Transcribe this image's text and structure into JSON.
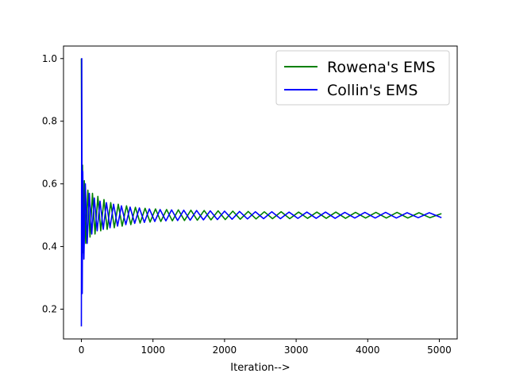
{
  "chart_data": {
    "type": "line",
    "title": "",
    "xlabel": "Iteration-->",
    "ylabel": "",
    "xlim": [
      -250,
      5250
    ],
    "ylim": [
      0.105,
      1.04
    ],
    "xticks": [
      0,
      1000,
      2000,
      3000,
      4000,
      5000
    ],
    "xtick_labels": [
      "0",
      "1000",
      "2000",
      "3000",
      "4000",
      "5000"
    ],
    "yticks": [
      0.2,
      0.4,
      0.6,
      0.8,
      1.0
    ],
    "ytick_labels": [
      "0.2",
      "0.4",
      "0.6",
      "0.8",
      "1.0"
    ],
    "grid": false,
    "legend_position": "top-right",
    "series": [
      {
        "name": "Rowena's EMS",
        "color": "#008000",
        "x": [
          0,
          8,
          16,
          24,
          40,
          60,
          90,
          120,
          155,
          190,
          230,
          270,
          315,
          360,
          410,
          460,
          515,
          570,
          630,
          690,
          755,
          820,
          890,
          960,
          1035,
          1110,
          1190,
          1270,
          1355,
          1440,
          1530,
          1620,
          1715,
          1810,
          1910,
          2010,
          2115,
          2220,
          2330,
          2440,
          2555,
          2670,
          2790,
          2910,
          3035,
          3160,
          3290,
          3420,
          3555,
          3690,
          3830,
          3970,
          4115,
          4260,
          4410,
          4560,
          4715,
          4870,
          5030
        ],
        "y": [
          1.0,
          0.3,
          0.66,
          0.38,
          0.61,
          0.41,
          0.58,
          0.43,
          0.57,
          0.44,
          0.56,
          0.45,
          0.55,
          0.455,
          0.54,
          0.46,
          0.535,
          0.465,
          0.53,
          0.47,
          0.525,
          0.475,
          0.522,
          0.478,
          0.52,
          0.48,
          0.518,
          0.482,
          0.517,
          0.483,
          0.516,
          0.484,
          0.515,
          0.485,
          0.514,
          0.486,
          0.513,
          0.487,
          0.512,
          0.488,
          0.511,
          0.489,
          0.511,
          0.489,
          0.51,
          0.49,
          0.51,
          0.49,
          0.51,
          0.49,
          0.509,
          0.491,
          0.509,
          0.491,
          0.509,
          0.491,
          0.508,
          0.492,
          0.505
        ]
      },
      {
        "name": "Collin's EMS",
        "color": "#0000ff",
        "x": [
          0,
          5,
          12,
          20,
          35,
          55,
          80,
          110,
          145,
          180,
          220,
          260,
          305,
          350,
          400,
          450,
          505,
          560,
          620,
          680,
          745,
          810,
          880,
          950,
          1025,
          1100,
          1180,
          1260,
          1345,
          1430,
          1520,
          1610,
          1705,
          1800,
          1900,
          2000,
          2105,
          2210,
          2320,
          2430,
          2545,
          2660,
          2780,
          2900,
          3025,
          3150,
          3280,
          3410,
          3545,
          3680,
          3820,
          3960,
          4105,
          4250,
          4400,
          4550,
          4705,
          4860,
          5030
        ],
        "y": [
          0.145,
          1.0,
          0.25,
          0.64,
          0.36,
          0.6,
          0.41,
          0.57,
          0.44,
          0.555,
          0.45,
          0.545,
          0.455,
          0.54,
          0.46,
          0.535,
          0.465,
          0.53,
          0.47,
          0.526,
          0.474,
          0.523,
          0.477,
          0.52,
          0.48,
          0.518,
          0.482,
          0.517,
          0.483,
          0.516,
          0.484,
          0.515,
          0.485,
          0.514,
          0.486,
          0.513,
          0.487,
          0.512,
          0.488,
          0.511,
          0.489,
          0.511,
          0.489,
          0.51,
          0.49,
          0.51,
          0.49,
          0.51,
          0.49,
          0.509,
          0.491,
          0.509,
          0.491,
          0.509,
          0.491,
          0.508,
          0.492,
          0.508,
          0.492
        ]
      }
    ]
  }
}
